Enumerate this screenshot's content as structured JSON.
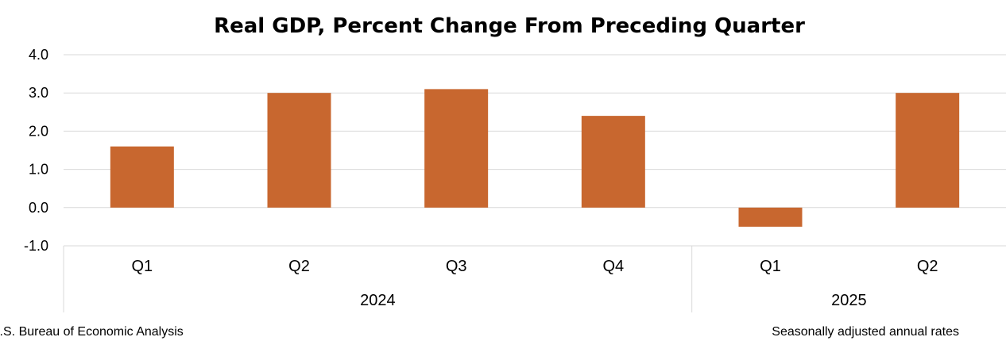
{
  "chart_data": {
    "type": "bar",
    "title": "Real GDP, Percent Change From Preceding Quarter",
    "categories": [
      "Q1",
      "Q2",
      "Q3",
      "Q4",
      "Q1",
      "Q2"
    ],
    "groups": [
      {
        "label": "2024",
        "categories": [
          "Q1",
          "Q2",
          "Q3",
          "Q4"
        ]
      },
      {
        "label": "2025",
        "categories": [
          "Q1",
          "Q2"
        ]
      }
    ],
    "values": [
      1.6,
      3.0,
      3.1,
      2.4,
      -0.5,
      3.0
    ],
    "ylim": [
      -1.0,
      4.0
    ],
    "yticks": [
      "4.0",
      "3.0",
      "2.0",
      "1.0",
      "0.0",
      "-1.0"
    ],
    "grid": true,
    "bar_color": "#C8672F",
    "source": "U.S. Bureau of Economic Analysis",
    "note": "Seasonally adjusted annual rates"
  }
}
